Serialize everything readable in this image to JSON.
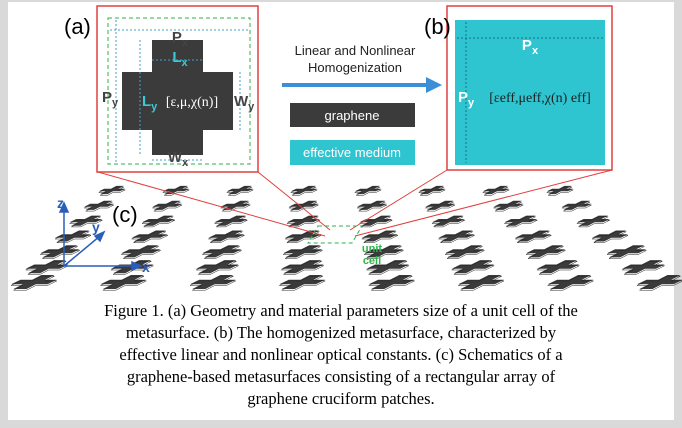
{
  "panel_a": {
    "label": "(a)",
    "px": {
      "base": "P",
      "sub": "x"
    },
    "py": {
      "base": "P",
      "sub": "y"
    },
    "lx": {
      "base": "L",
      "sub": "x"
    },
    "ly": {
      "base": "L",
      "sub": "y"
    },
    "wx": {
      "base": "W",
      "sub": "x"
    },
    "wy": {
      "base": "W",
      "sub": "y"
    },
    "params": "[ε,μ,χ(n)]"
  },
  "middle": {
    "arrow_text": [
      "Linear and Nonlinear",
      "Homogenization"
    ],
    "graphene": "graphene",
    "effective_medium": "effective medium"
  },
  "panel_b": {
    "label": "(b)",
    "px": {
      "base": "P",
      "sub": "x"
    },
    "py": {
      "base": "P",
      "sub": "y"
    },
    "params": "[εeff,μeff,χ(n) eff]"
  },
  "panel_c": {
    "label": "(c)",
    "axes": {
      "z": "z",
      "y": "y",
      "x": "x"
    },
    "unit_cell": [
      "unit",
      "cell"
    ]
  },
  "caption": [
    "Figure 1. (a) Geometry and material parameters size of a unit cell of the",
    "metasurface. (b) The homogenized metasurface, characterized by",
    "effective linear and nonlinear optical constants. (c) Schematics of a",
    "graphene-based metasurfaces consisting of a rectangular array of",
    "graphene cruciform patches."
  ]
}
